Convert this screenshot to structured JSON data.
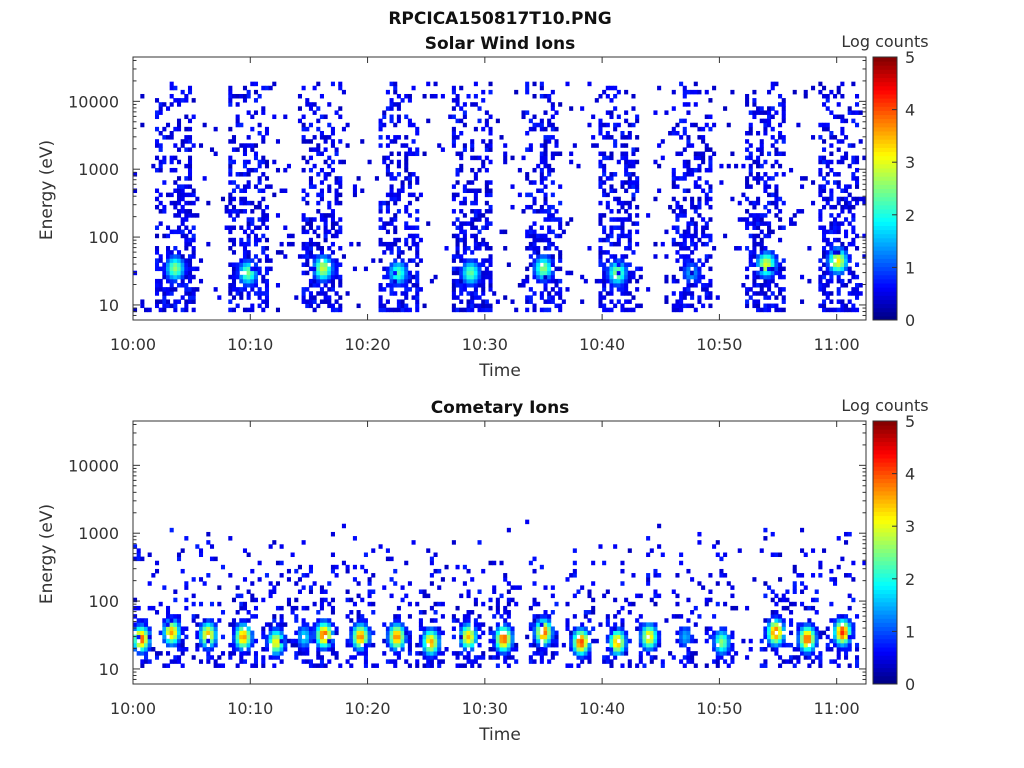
{
  "figure_title": "RPCICA150817T10.PNG",
  "colors": {
    "background_empty": "#ffffff",
    "axis": "#333333",
    "colormap": "jet"
  },
  "chart_data": [
    {
      "type": "heatmap",
      "title": "Solar Wind Ions",
      "xlabel": "Time",
      "ylabel": "Energy (eV)",
      "x_ticks": [
        "10:00",
        "10:10",
        "10:20",
        "10:30",
        "10:40",
        "10:50",
        "11:00"
      ],
      "x_tick_minutes": [
        0,
        10,
        20,
        30,
        40,
        50,
        60
      ],
      "xlim_minutes": [
        0,
        62.5
      ],
      "y_scale": "log",
      "ylim": [
        6,
        45000
      ],
      "y_ticks": [
        "10",
        "100",
        "1000",
        "10000"
      ],
      "y_tick_values": [
        10,
        100,
        1000,
        10000
      ],
      "colorbar": {
        "label": "Log counts",
        "ticks": [
          "0",
          "1",
          "2",
          "3",
          "4",
          "5"
        ],
        "range": [
          0,
          5
        ]
      },
      "sweep_center_minutes": [
        3.6,
        9.8,
        16.2,
        22.6,
        28.8,
        35.0,
        41.3,
        47.6,
        54.0,
        60.1
      ],
      "sweep_peak_energy_ev": [
        35,
        30,
        35,
        30,
        30,
        35,
        30,
        30,
        40,
        45
      ],
      "sweep_peak_log_counts": [
        2.6,
        2.5,
        2.9,
        2.3,
        2.4,
        2.6,
        2.6,
        1.5,
        3.0,
        3.2
      ],
      "background_energy_range_ev": [
        8,
        20000
      ],
      "background_log_counts": 0.3
    },
    {
      "type": "heatmap",
      "title": "Cometary Ions",
      "xlabel": "Time",
      "ylabel": "Energy (eV)",
      "x_ticks": [
        "10:00",
        "10:10",
        "10:20",
        "10:30",
        "10:40",
        "10:50",
        "11:00"
      ],
      "x_tick_minutes": [
        0,
        10,
        20,
        30,
        40,
        50,
        60
      ],
      "xlim_minutes": [
        0,
        62.5
      ],
      "y_scale": "log",
      "ylim": [
        6,
        45000
      ],
      "y_ticks": [
        "10",
        "100",
        "1000",
        "10000"
      ],
      "y_tick_values": [
        10,
        100,
        1000,
        10000
      ],
      "colorbar": {
        "label": "Log counts",
        "ticks": [
          "0",
          "1",
          "2",
          "3",
          "4",
          "5"
        ],
        "range": [
          0,
          5
        ]
      },
      "burst_center_minutes": [
        0.7,
        3.3,
        6.4,
        9.4,
        12.2,
        14.6,
        16.3,
        19.4,
        22.5,
        25.4,
        28.6,
        31.6,
        35.0,
        38.2,
        41.3,
        44.0,
        47.1,
        50.2,
        54.8,
        57.5,
        60.5
      ],
      "burst_peak_energy_ev": [
        28,
        35,
        32,
        30,
        25,
        30,
        32,
        30,
        30,
        25,
        30,
        28,
        35,
        25,
        25,
        30,
        30,
        25,
        35,
        28,
        35
      ],
      "burst_peak_log_counts": [
        4.0,
        3.6,
        3.5,
        3.7,
        3.2,
        1.8,
        4.0,
        3.8,
        3.8,
        3.6,
        3.5,
        4.0,
        4.0,
        4.1,
        3.6,
        3.4,
        1.5,
        2.6,
        4.0,
        4.0,
        4.2
      ],
      "background_energy_range_ev": [
        10,
        1500
      ],
      "background_log_counts": 0.3
    }
  ]
}
